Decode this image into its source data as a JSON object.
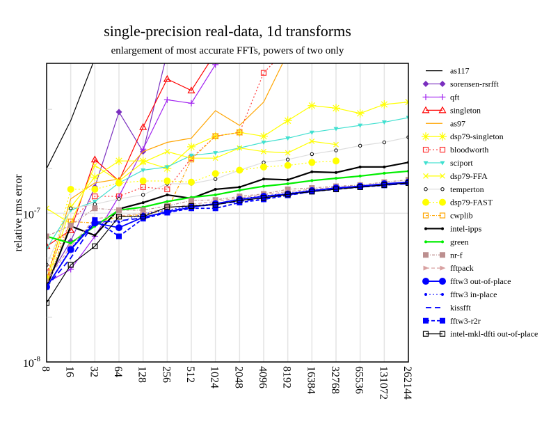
{
  "chart_data": {
    "type": "line",
    "title": "single-precision real-data, 1d transforms",
    "subtitle": "enlargement of most accurate FFTs, powers of two only",
    "xlabel": "",
    "ylabel": "relative rms error",
    "xscale": "log2",
    "yscale": "log",
    "ylim": [
      1e-08,
      1.02e-06
    ],
    "y_tick_labels": [
      {
        "value": 1e-08,
        "base": "10",
        "exp": "-8"
      },
      {
        "value": 1e-07,
        "base": "10",
        "exp": "-7"
      }
    ],
    "grid": true,
    "legend_position": "right",
    "categories": [
      "8",
      "16",
      "32",
      "64",
      "128",
      "256",
      "512",
      "1024",
      "2048",
      "4096",
      "8192",
      "16384",
      "32768",
      "65536",
      "131072",
      "262144"
    ],
    "series": [
      {
        "name": "as117",
        "color": "#000000",
        "dash": "",
        "marker": "none",
        "values": [
          2e-07,
          4.2e-07,
          1.1e-06,
          null,
          null,
          null,
          null,
          null,
          null,
          null,
          null,
          null,
          null,
          null,
          null,
          null
        ]
      },
      {
        "name": "sorensen-rsrfft",
        "color": "#7a2fbf",
        "dash": "",
        "marker": "diamond",
        "values": [
          3.5e-08,
          6.5e-08,
          1.5e-07,
          4.8e-07,
          2.6e-07,
          1.2e-06,
          null,
          null,
          null,
          null,
          null,
          null,
          null,
          null,
          null,
          null
        ]
      },
      {
        "name": "qft",
        "color": "#a020f0",
        "dash": "",
        "marker": "plus",
        "values": [
          3.4e-08,
          4.2e-08,
          7e-08,
          1.3e-07,
          2.7e-07,
          5.8e-07,
          5.5e-07,
          1e-06,
          null,
          null,
          null,
          null,
          null,
          null,
          null,
          null
        ]
      },
      {
        "name": "singleton",
        "color": "#ff0000",
        "dash": "",
        "marker": "triangle",
        "values": [
          6e-08,
          7.7e-08,
          2.3e-07,
          1.65e-07,
          3.8e-07,
          8e-07,
          6.7e-07,
          1.2e-06,
          null,
          null,
          null,
          null,
          null,
          null,
          null,
          null
        ]
      },
      {
        "name": "as97",
        "color": "#ffa500",
        "dash": "",
        "marker": "none",
        "values": [
          3.6e-08,
          1.25e-07,
          1.6e-07,
          1.7e-07,
          2.6e-07,
          3e-07,
          3.2e-07,
          4.9e-07,
          3.9e-07,
          5.6e-07,
          1.2e-06,
          null,
          null,
          null,
          null,
          null
        ]
      },
      {
        "name": "dsp79-singleton",
        "color": "#ffff00",
        "dash": "",
        "marker": "asterisk",
        "values": [
          3.4e-08,
          1.1e-07,
          1.75e-07,
          2.25e-07,
          2.25e-07,
          2e-07,
          2.8e-07,
          3.3e-07,
          3.5e-07,
          3.3e-07,
          4.2e-07,
          5.3e-07,
          5.1e-07,
          4.7e-07,
          5.4e-07,
          5.6e-07
        ]
      },
      {
        "name": "bloodworth",
        "color": "#ff3333",
        "dash": "2,3",
        "marker": "square-open",
        "values": [
          4e-08,
          8.8e-08,
          1.3e-07,
          1.3e-07,
          1.5e-07,
          1.45e-07,
          2.35e-07,
          3.3e-07,
          3.5e-07,
          8.8e-07,
          1.3e-06,
          null,
          null,
          null,
          null,
          null
        ]
      },
      {
        "name": "sciport",
        "color": "#40e0d0",
        "dash": "",
        "marker": "triangle-down",
        "values": [
          5.8e-08,
          1.05e-07,
          1.2e-07,
          1.6e-07,
          1.95e-07,
          2.05e-07,
          2.45e-07,
          2.55e-07,
          2.75e-07,
          3e-07,
          3.2e-07,
          3.5e-07,
          3.7e-07,
          3.9e-07,
          4.1e-07,
          4.4e-07
        ]
      },
      {
        "name": "dsp79-FFA",
        "color": "#ffff00",
        "dash": "",
        "marker": "x",
        "values": [
          1.08e-07,
          8.5e-08,
          2.1e-07,
          1.65e-07,
          2.2e-07,
          2.6e-07,
          2.35e-07,
          2.35e-07,
          2.75e-07,
          2.6e-07,
          2.55e-07,
          3.05e-07,
          2.9e-07,
          null,
          null,
          null
        ]
      },
      {
        "name": "temperton",
        "color": "#dddddd",
        "dash": "",
        "marker": "circle-small",
        "values": [
          4.5e-08,
          1.08e-07,
          1.15e-07,
          1.25e-07,
          1.33e-07,
          1.58e-07,
          1.58e-07,
          1.7e-07,
          1.95e-07,
          2.2e-07,
          2.3e-07,
          2.5e-07,
          2.65e-07,
          2.85e-07,
          3e-07,
          3.25e-07
        ]
      },
      {
        "name": "dsp79-FAST",
        "color": "#ffff00",
        "dash": "2,3",
        "marker": "circle-filled",
        "values": [
          3.6e-08,
          1.45e-07,
          1.45e-07,
          1.6e-07,
          1.65e-07,
          1.65e-07,
          1.62e-07,
          1.85e-07,
          1.95e-07,
          2.05e-07,
          2.1e-07,
          2.2e-07,
          2.25e-07,
          null,
          null,
          null
        ]
      },
      {
        "name": "cwplib",
        "color": "#ffa500",
        "dash": "4,2,1,2",
        "marker": "square-open",
        "values": [
          3.4e-08,
          8.8e-08,
          8.6e-08,
          9.5e-08,
          9.8e-08,
          1.05e-07,
          2.3e-07,
          3.3e-07,
          3.5e-07,
          null,
          null,
          null,
          null,
          null,
          null,
          null
        ]
      },
      {
        "name": "intel-ipps",
        "color": "#000000",
        "dash": "",
        "marker": "dot",
        "values": [
          3.2e-08,
          8.2e-08,
          7.1e-08,
          1.07e-07,
          1.18e-07,
          1.33e-07,
          1.26e-07,
          1.45e-07,
          1.5e-07,
          1.7e-07,
          1.68e-07,
          1.9e-07,
          1.88e-07,
          2.05e-07,
          2.05e-07,
          2.2e-07
        ]
      },
      {
        "name": "green",
        "color": "#00ee00",
        "dash": "",
        "marker": "dot",
        "values": [
          7e-08,
          6.3e-08,
          8.2e-08,
          1.05e-07,
          1.1e-07,
          1.2e-07,
          1.28e-07,
          1.33e-07,
          1.43e-07,
          1.52e-07,
          1.58e-07,
          1.66e-07,
          1.72e-07,
          1.78e-07,
          1.86e-07,
          1.92e-07
        ]
      },
      {
        "name": "nr-f",
        "color": "#bc8f8f",
        "dash": "4,2,1,2",
        "marker": "square-filled",
        "values": [
          7e-08,
          8.3e-08,
          1.08e-07,
          1.05e-07,
          1.05e-07,
          1.12e-07,
          1.22e-07,
          1.23e-07,
          1.3e-07,
          1.35e-07,
          1.45e-07,
          1.48e-07,
          1.52e-07,
          1.55e-07,
          1.62e-07,
          1.68e-07
        ]
      },
      {
        "name": "fftpack",
        "color": "#d8a0a0",
        "dash": "5,3",
        "marker": "triangle-right",
        "values": [
          3.5e-08,
          6e-08,
          9.2e-08,
          9.6e-08,
          1e-07,
          1.08e-07,
          1.15e-07,
          1.2e-07,
          1.27e-07,
          1.33e-07,
          1.4e-07,
          1.45e-07,
          1.5e-07,
          1.53e-07,
          1.58e-07,
          1.63e-07
        ]
      },
      {
        "name": "fftw3 out-of-place",
        "color": "#0000ff",
        "dash": "",
        "marker": "circle-filled",
        "values": [
          3.2e-08,
          5.7e-08,
          8.6e-08,
          8e-08,
          9.4e-08,
          1.02e-07,
          1.1e-07,
          1.16e-07,
          1.24e-07,
          1.3e-07,
          1.35e-07,
          1.42e-07,
          1.48e-07,
          1.52e-07,
          1.58e-07,
          1.62e-07
        ]
      },
      {
        "name": "fftw3 in-place",
        "color": "#0000ff",
        "dash": "2,3",
        "marker": "dot",
        "values": [
          3.2e-08,
          5.8e-08,
          8.8e-08,
          8.7e-08,
          9.9e-08,
          1.05e-07,
          1.12e-07,
          1.16e-07,
          1.25e-07,
          1.31e-07,
          1.36e-07,
          1.43e-07,
          1.47e-07,
          1.53e-07,
          1.57e-07,
          1.61e-07
        ]
      },
      {
        "name": "kissfft",
        "color": "#0000ff",
        "dash": "8,5",
        "marker": "none",
        "values": [
          3.2e-08,
          5e-08,
          8.7e-08,
          8.9e-08,
          9.3e-08,
          1.03e-07,
          1.1e-07,
          1.15e-07,
          1.2e-07,
          1.27e-07,
          1.33e-07,
          1.4e-07,
          1.46e-07,
          1.5e-07,
          1.55e-07,
          1.58e-07
        ]
      },
      {
        "name": "fftw3-r2r",
        "color": "#0000ff",
        "dash": "5,3",
        "marker": "square-filled",
        "values": [
          3.2e-08,
          5.7e-08,
          9e-08,
          7e-08,
          9.2e-08,
          1.01e-07,
          1.08e-07,
          1.08e-07,
          1.18e-07,
          1.24e-07,
          1.32e-07,
          1.4e-07,
          1.45e-07,
          1.5e-07,
          1.54e-07,
          1.6e-07
        ]
      },
      {
        "name": "intel-mkl-dfti out-of-place",
        "color": "#000000",
        "dash": "",
        "marker": "square-open",
        "values": [
          2.5e-08,
          4.5e-08,
          6e-08,
          9.5e-08,
          9.5e-08,
          1.1e-07,
          1.12e-07,
          1.14e-07,
          1.22e-07,
          1.27e-07,
          1.34e-07,
          1.4e-07,
          1.45e-07,
          1.5e-07,
          1.55e-07,
          1.6e-07
        ]
      }
    ]
  }
}
